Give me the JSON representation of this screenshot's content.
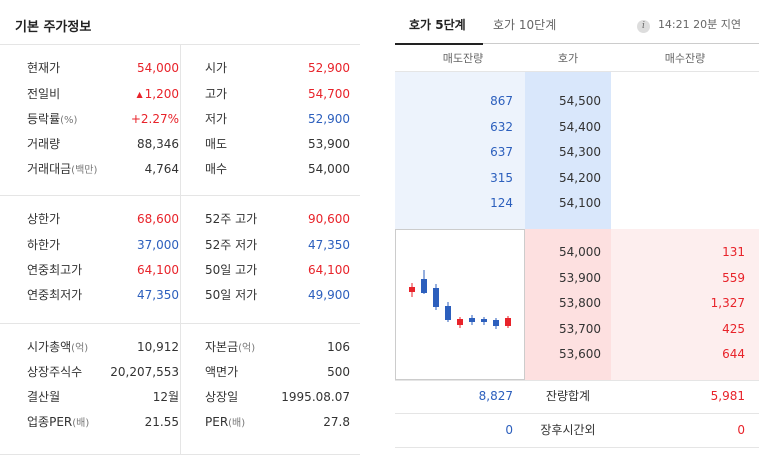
{
  "basic": {
    "title": "기본 주가정보",
    "section1": [
      {
        "l1": "현재가",
        "u1": "",
        "v1": "54,000",
        "c1": "red",
        "l2": "시가",
        "v2": "52,900",
        "c2": "red"
      },
      {
        "l1": "전일비",
        "u1": "",
        "v1": "1,200",
        "tri": "▲",
        "c1": "red",
        "l2": "고가",
        "v2": "54,700",
        "c2": "red"
      },
      {
        "l1": "등락률",
        "u1": "(%)",
        "v1": "+2.27%",
        "c1": "red",
        "l2": "저가",
        "v2": "52,900",
        "c2": "blue"
      },
      {
        "l1": "거래량",
        "u1": "",
        "v1": "88,346",
        "c1": "dark",
        "l2": "매도",
        "v2": "53,900",
        "c2": "dark"
      },
      {
        "l1": "거래대금",
        "u1": "(백만)",
        "v1": "4,764",
        "c1": "dark",
        "l2": "매수",
        "v2": "54,000",
        "c2": "dark"
      }
    ],
    "section2": [
      {
        "l1": "상한가",
        "v1": "68,600",
        "c1": "red",
        "l2": "52주 고가",
        "v2": "90,600",
        "c2": "red"
      },
      {
        "l1": "하한가",
        "v1": "37,000",
        "c1": "blue",
        "l2": "52주 저가",
        "v2": "47,350",
        "c2": "blue"
      },
      {
        "l1": "연중최고가",
        "v1": "64,100",
        "c1": "red",
        "l2": "50일 고가",
        "v2": "64,100",
        "c2": "red"
      },
      {
        "l1": "연중최저가",
        "v1": "47,350",
        "c1": "blue",
        "l2": "50일 저가",
        "v2": "49,900",
        "c2": "blue"
      }
    ],
    "section3": [
      {
        "l1": "시가총액",
        "u1": "(억)",
        "v1": "10,912",
        "l2": "자본금",
        "u2": "(억)",
        "v2": "106"
      },
      {
        "l1": "상장주식수",
        "u1": "",
        "v1": "20,207,553",
        "l2": "액면가",
        "u2": "",
        "v2": "500"
      },
      {
        "l1": "결산월",
        "u1": "",
        "v1": "12월",
        "l2": "상장일",
        "u2": "",
        "v2": "1995.08.07"
      },
      {
        "l1": "업종PER",
        "u1": "(배)",
        "v1": "21.55",
        "l2": "PER",
        "u2": "(배)",
        "v2": "27.8"
      }
    ]
  },
  "orderbook": {
    "tabs": [
      "호가 5단계",
      "호가 10단계"
    ],
    "time_note": "14:21 20분 지연",
    "info_icon": "i",
    "headers": {
      "sell": "매도잔량",
      "price": "호가",
      "buy": "매수잔량"
    },
    "asks": [
      {
        "qty": "867",
        "price": "54,500"
      },
      {
        "qty": "632",
        "price": "54,400"
      },
      {
        "qty": "637",
        "price": "54,300"
      },
      {
        "qty": "315",
        "price": "54,200"
      },
      {
        "qty": "124",
        "price": "54,100"
      }
    ],
    "bids": [
      {
        "price": "54,000",
        "qty": "131"
      },
      {
        "price": "53,900",
        "qty": "559"
      },
      {
        "price": "53,800",
        "qty": "1,327"
      },
      {
        "price": "53,700",
        "qty": "425"
      },
      {
        "price": "53,600",
        "qty": "644"
      }
    ],
    "summary": {
      "sell_total": "8,827",
      "label": "잔량합계",
      "buy_total": "5,981"
    },
    "after_hours": {
      "sell": "0",
      "label": "장후시간외",
      "buy": "0"
    },
    "colors": {
      "up": "#e8232a",
      "down": "#2c5fbd"
    }
  }
}
